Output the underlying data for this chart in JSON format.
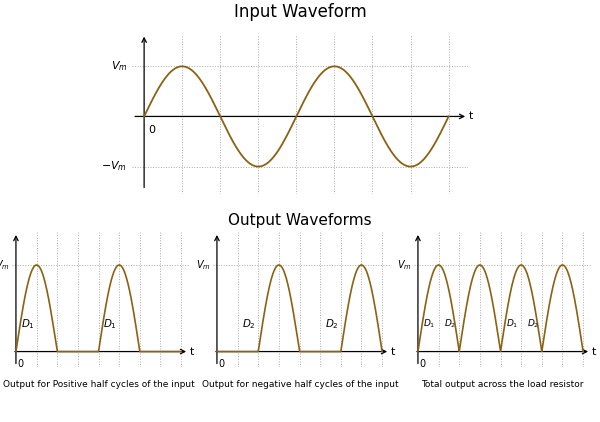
{
  "title_top": "Input Waveform",
  "title_bottom": "Output Waveforms",
  "line_color": "#8B6213",
  "axis_color": "#000000",
  "grid_color": "#AAAAAA",
  "background": "#ffffff",
  "Vm_label": "$V_m$",
  "neg_Vm_label": "$-V_m$",
  "t_label": "t",
  "zero_label": "0",
  "caption1": "Output for Positive half cycles of the input",
  "caption2": "Output for negative half cycles of the input",
  "caption3": "Total output across the load resistor",
  "D1_label": "$D_1$",
  "D2_label": "$D_2$",
  "caption_fontsize": 6.5,
  "label_fontsize": 8,
  "title_fontsize": 12,
  "subtitle_fontsize": 11
}
